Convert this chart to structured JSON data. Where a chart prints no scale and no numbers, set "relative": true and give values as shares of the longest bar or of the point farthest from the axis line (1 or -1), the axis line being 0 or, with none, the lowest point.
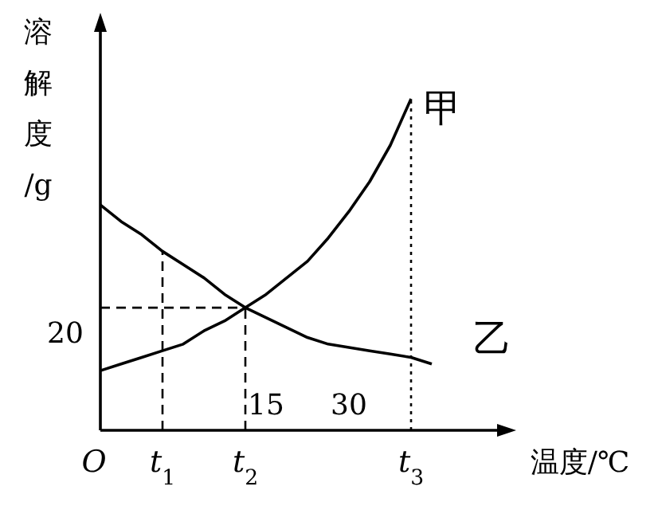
{
  "chart_data": {
    "type": "line",
    "relative": true,
    "xlabel": "温度/℃",
    "ylabel": "溶解度/g",
    "categories": [
      "O",
      null,
      null,
      "t$_{1}$",
      null,
      null,
      null,
      "t$_{2}$",
      null,
      null,
      null,
      null,
      null,
      null,
      null,
      "t$_{3}$",
      null
    ],
    "series": [
      {
        "name": "甲",
        "color": "#000000",
        "values": [
          0.18,
          0.2,
          0.22,
          0.24,
          0.26,
          0.3,
          0.33,
          0.37,
          0.41,
          0.46,
          0.51,
          0.58,
          0.66,
          0.75,
          0.86,
          1.0,
          null
        ]
      },
      {
        "name": "乙",
        "color": "#000000",
        "values": [
          0.68,
          0.63,
          0.59,
          0.54,
          0.5,
          0.46,
          0.41,
          0.37,
          0.34,
          0.31,
          0.28,
          0.26,
          0.25,
          0.24,
          0.23,
          0.22,
          0.2
        ]
      }
    ],
    "ref_lines": [
      {
        "axis": "y",
        "value": 0.37,
        "line_style": "dashed"
      },
      {
        "axis": "x",
        "value": "t$_{1}$",
        "line_style": "dashed"
      },
      {
        "axis": "x",
        "value": "t$_{2}$",
        "line_style": "dashed"
      },
      {
        "axis": "x",
        "value": "t$_{3}$",
        "line_style": "dotted"
      }
    ],
    "annotations": [
      "20",
      "15",
      "30"
    ],
    "marker": "none",
    "line_style": "solid"
  }
}
